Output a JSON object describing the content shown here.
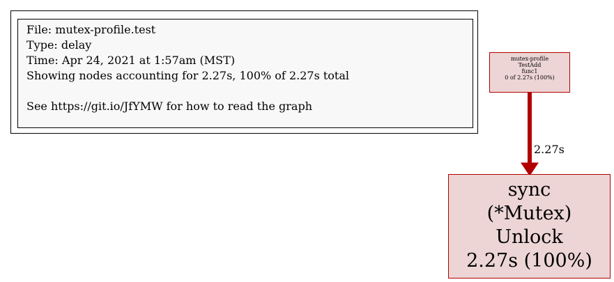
{
  "legend": {
    "lines": [
      "File: mutex-profile.test",
      "Type: delay",
      "Time: Apr 24, 2021 at 1:57am (MST)",
      "Showing nodes accounting for 2.27s, 100% of 2.27s total"
    ],
    "help": "See https://git.io/JfYMW for how to read the graph"
  },
  "nodes": [
    {
      "lines": [
        "mutex-profile",
        "TestAdd",
        "func1",
        "0 of 2.27s (100%)"
      ]
    },
    {
      "lines": [
        "sync",
        "(*Mutex)",
        "Unlock",
        "2.27s (100%)"
      ]
    }
  ],
  "edges": [
    {
      "label": "2.27s",
      "color": "#b20000"
    }
  ],
  "colors": {
    "node_fill": "#edd5d5",
    "node_border": "#b20000",
    "legend_fill": "#f8f8f8"
  }
}
